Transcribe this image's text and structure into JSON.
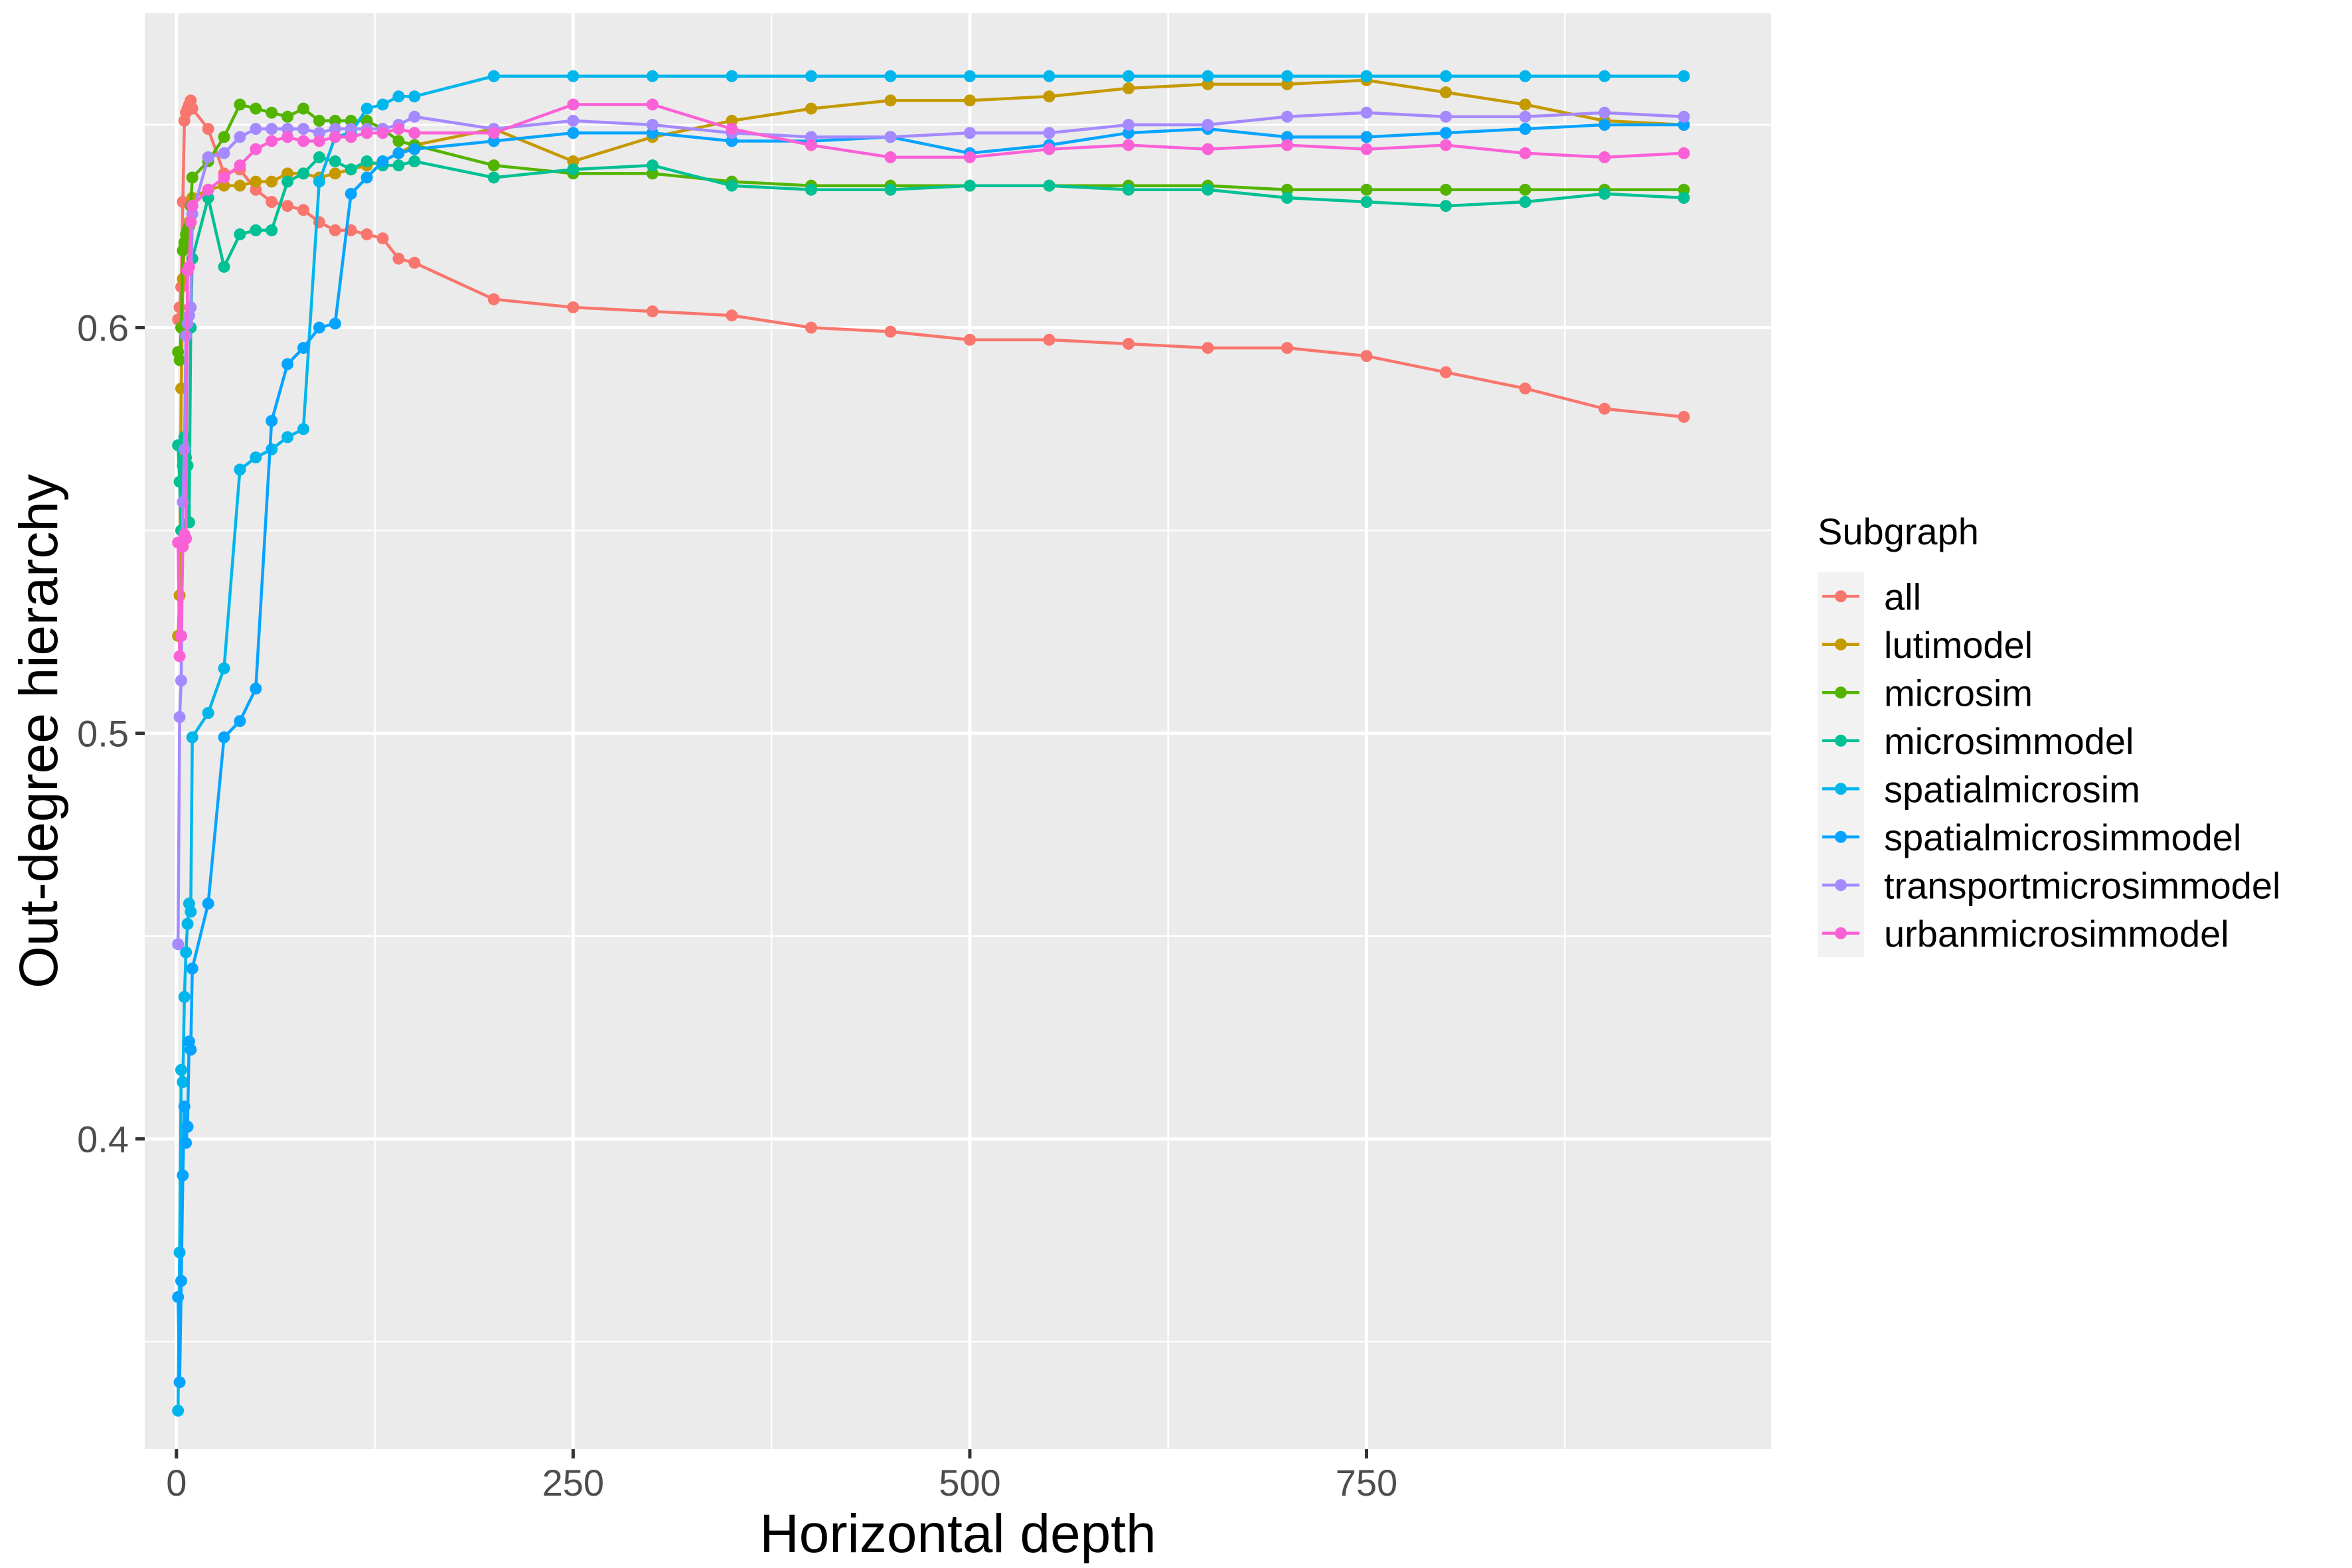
{
  "chart_data": {
    "type": "line",
    "title": "",
    "xlabel": "Horizontal depth",
    "ylabel": "Out-degree hierarchy",
    "xlim": [
      -20,
      1005
    ],
    "ylim": [
      0.3235,
      0.6775
    ],
    "x_ticks": [
      0,
      250,
      500,
      750
    ],
    "x_tick_labels": [
      "0",
      "250",
      "500",
      "750"
    ],
    "y_ticks": [
      0.4,
      0.5,
      0.6
    ],
    "y_tick_labels": [
      "0.4",
      "0.5",
      "0.6"
    ],
    "grid": true,
    "legend": {
      "title": "Subgraph",
      "position": "right"
    },
    "series": [
      {
        "name": "all",
        "color": "#F8766D",
        "x": [
          1,
          2,
          3,
          4,
          5,
          6,
          7,
          8,
          9,
          10,
          20,
          30,
          40,
          50,
          60,
          70,
          80,
          90,
          100,
          110,
          120,
          130,
          140,
          150,
          200,
          250,
          300,
          350,
          400,
          450,
          500,
          550,
          600,
          650,
          700,
          750,
          800,
          850,
          900,
          950
        ],
        "y": [
          0.602,
          0.605,
          0.61,
          0.631,
          0.651,
          0.653,
          0.654,
          0.655,
          0.656,
          0.654,
          0.649,
          0.638,
          0.639,
          0.634,
          0.631,
          0.63,
          0.629,
          0.626,
          0.624,
          0.624,
          0.623,
          0.622,
          0.617,
          0.616,
          0.607,
          0.605,
          0.604,
          0.603,
          0.6,
          0.599,
          0.597,
          0.597,
          0.596,
          0.595,
          0.595,
          0.593,
          0.589,
          0.585,
          0.58,
          0.578
        ]
      },
      {
        "name": "lutimodel",
        "color": "#C49A00",
        "x": [
          1,
          2,
          3,
          4,
          5,
          6,
          7,
          8,
          9,
          10,
          20,
          30,
          40,
          50,
          60,
          70,
          80,
          90,
          100,
          110,
          120,
          130,
          140,
          150,
          200,
          250,
          300,
          350,
          400,
          450,
          500,
          550,
          600,
          650,
          700,
          750,
          800,
          850,
          900,
          950
        ],
        "y": [
          0.524,
          0.534,
          0.585,
          0.612,
          0.62,
          0.621,
          0.622,
          0.626,
          0.63,
          0.632,
          0.634,
          0.635,
          0.635,
          0.636,
          0.636,
          0.638,
          0.638,
          0.637,
          0.638,
          0.639,
          0.64,
          0.641,
          0.643,
          0.645,
          0.649,
          0.641,
          0.647,
          0.651,
          0.654,
          0.656,
          0.656,
          0.657,
          0.659,
          0.66,
          0.66,
          0.661,
          0.658,
          0.655,
          0.651,
          0.65
        ]
      },
      {
        "name": "microsim",
        "color": "#53B400",
        "x": [
          1,
          2,
          3,
          4,
          5,
          6,
          7,
          8,
          9,
          10,
          20,
          30,
          40,
          50,
          60,
          70,
          80,
          90,
          100,
          110,
          120,
          130,
          140,
          150,
          200,
          250,
          300,
          350,
          400,
          450,
          500,
          550,
          600,
          650,
          700,
          750,
          800,
          850,
          900,
          950
        ],
        "y": [
          0.594,
          0.592,
          0.6,
          0.619,
          0.621,
          0.623,
          0.624,
          0.625,
          0.63,
          0.637,
          0.641,
          0.647,
          0.655,
          0.654,
          0.653,
          0.652,
          0.654,
          0.651,
          0.651,
          0.651,
          0.651,
          0.649,
          0.646,
          0.645,
          0.64,
          0.638,
          0.638,
          0.636,
          0.635,
          0.635,
          0.635,
          0.635,
          0.635,
          0.635,
          0.634,
          0.634,
          0.634,
          0.634,
          0.634,
          0.634
        ]
      },
      {
        "name": "microsimmodel",
        "color": "#00C094",
        "x": [
          1,
          2,
          3,
          4,
          5,
          6,
          7,
          8,
          9,
          10,
          20,
          30,
          40,
          50,
          60,
          70,
          80,
          90,
          100,
          110,
          120,
          130,
          140,
          150,
          200,
          250,
          300,
          350,
          400,
          450,
          500,
          550,
          600,
          650,
          700,
          750,
          800,
          850,
          900,
          950
        ],
        "y": [
          0.571,
          0.562,
          0.55,
          0.566,
          0.573,
          0.568,
          0.566,
          0.552,
          0.6,
          0.617,
          0.632,
          0.615,
          0.623,
          0.624,
          0.624,
          0.636,
          0.638,
          0.642,
          0.641,
          0.639,
          0.641,
          0.64,
          0.64,
          0.641,
          0.637,
          0.639,
          0.64,
          0.635,
          0.634,
          0.634,
          0.635,
          0.635,
          0.634,
          0.634,
          0.632,
          0.631,
          0.63,
          0.631,
          0.633,
          0.632
        ]
      },
      {
        "name": "spatialmicrosim",
        "color": "#00B6EB",
        "x": [
          1,
          2,
          3,
          4,
          5,
          6,
          7,
          8,
          9,
          10,
          20,
          30,
          40,
          50,
          60,
          70,
          80,
          90,
          100,
          110,
          120,
          130,
          140,
          150,
          200,
          250,
          300,
          350,
          400,
          450,
          500,
          550,
          600,
          650,
          700,
          750,
          800,
          850,
          900,
          950
        ],
        "y": [
          0.333,
          0.372,
          0.417,
          0.414,
          0.435,
          0.446,
          0.453,
          0.458,
          0.456,
          0.499,
          0.505,
          0.516,
          0.565,
          0.568,
          0.57,
          0.573,
          0.575,
          0.636,
          0.647,
          0.648,
          0.654,
          0.655,
          0.657,
          0.657,
          0.662,
          0.662,
          0.662,
          0.662,
          0.662,
          0.662,
          0.662,
          0.662,
          0.662,
          0.662,
          0.662,
          0.662,
          0.662,
          0.662,
          0.662,
          0.662
        ]
      },
      {
        "name": "spatialmicrosimmodel",
        "color": "#06A4FF",
        "x": [
          1,
          2,
          3,
          4,
          5,
          6,
          7,
          8,
          9,
          10,
          20,
          30,
          40,
          50,
          60,
          70,
          80,
          90,
          100,
          110,
          120,
          130,
          140,
          150,
          200,
          250,
          300,
          350,
          400,
          450,
          500,
          550,
          600,
          650,
          700,
          750,
          800,
          850,
          900,
          950
        ],
        "y": [
          0.361,
          0.34,
          0.365,
          0.391,
          0.408,
          0.399,
          0.403,
          0.424,
          0.422,
          0.442,
          0.458,
          0.499,
          0.503,
          0.511,
          0.577,
          0.591,
          0.595,
          0.6,
          0.601,
          0.633,
          0.637,
          0.641,
          0.643,
          0.644,
          0.646,
          0.648,
          0.648,
          0.646,
          0.646,
          0.647,
          0.643,
          0.645,
          0.648,
          0.649,
          0.647,
          0.647,
          0.648,
          0.649,
          0.65,
          0.65
        ]
      },
      {
        "name": "transportmicrosimmodel",
        "color": "#A58AFF",
        "x": [
          1,
          2,
          3,
          4,
          5,
          6,
          7,
          8,
          9,
          10,
          20,
          30,
          40,
          50,
          60,
          70,
          80,
          90,
          100,
          110,
          120,
          130,
          140,
          150,
          200,
          250,
          300,
          350,
          400,
          450,
          500,
          550,
          600,
          650,
          700,
          750,
          800,
          850,
          900,
          950
        ],
        "y": [
          0.448,
          0.504,
          0.513,
          0.557,
          0.57,
          0.598,
          0.601,
          0.603,
          0.605,
          0.628,
          0.642,
          0.643,
          0.647,
          0.649,
          0.649,
          0.649,
          0.649,
          0.648,
          0.649,
          0.649,
          0.649,
          0.649,
          0.65,
          0.652,
          0.649,
          0.651,
          0.65,
          0.648,
          0.647,
          0.647,
          0.648,
          0.648,
          0.65,
          0.65,
          0.652,
          0.653,
          0.652,
          0.652,
          0.653,
          0.652
        ]
      },
      {
        "name": "urbanmicrosimmodel",
        "color": "#FB61D7",
        "x": [
          1,
          2,
          3,
          4,
          5,
          6,
          7,
          8,
          9,
          10,
          20,
          30,
          40,
          50,
          60,
          70,
          80,
          90,
          100,
          110,
          120,
          130,
          140,
          150,
          200,
          250,
          300,
          350,
          400,
          450,
          500,
          550,
          600,
          650,
          700,
          750,
          800,
          850,
          900,
          950
        ],
        "y": [
          0.547,
          0.519,
          0.524,
          0.546,
          0.549,
          0.548,
          0.614,
          0.615,
          0.626,
          0.63,
          0.634,
          0.637,
          0.64,
          0.644,
          0.646,
          0.647,
          0.646,
          0.646,
          0.647,
          0.647,
          0.648,
          0.648,
          0.649,
          0.648,
          0.648,
          0.655,
          0.655,
          0.649,
          0.645,
          0.642,
          0.642,
          0.644,
          0.645,
          0.644,
          0.645,
          0.644,
          0.645,
          0.643,
          0.642,
          0.643
        ]
      }
    ]
  }
}
